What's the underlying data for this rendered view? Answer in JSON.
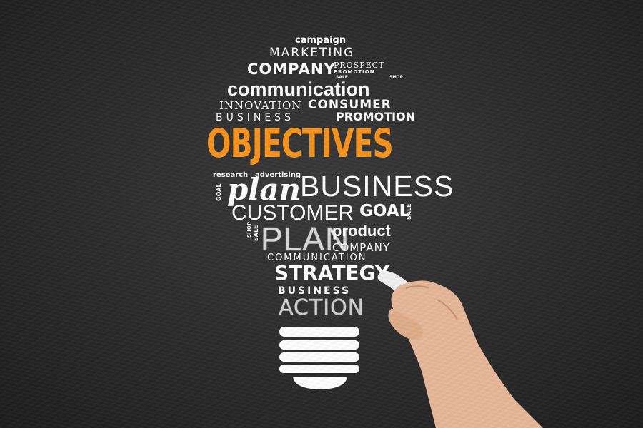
{
  "words": {
    "campaign": "campaign",
    "marketing": "MARKETING",
    "company": "COMPANY",
    "prospect": "PROSPECT",
    "promotion_small": "PROMOTION",
    "sale": "SALE",
    "shop": "SHOP",
    "communication": "communication",
    "innovation": "INNOVATION",
    "consumer": "CONSUMER",
    "business_spaced": "BUSINESS",
    "promotion": "PROMOTION",
    "objectives": "OBJECTIVES",
    "research": "research",
    "advertising": "advertising",
    "goal_small": "GOAL",
    "plan_script": "plan",
    "business_large": "BUSINESS",
    "customer": "CUSTOMER",
    "goal": "GOAL",
    "sale_right": "SALE",
    "shop_left": "SHOP",
    "sale_left": "SALE",
    "plan_caps": "PLAN",
    "product": "product",
    "company_small": "COMPANY",
    "communication_caps": "COMMUNICATION",
    "strategy": "STRATEGY",
    "business_bottom": "BUSINESS",
    "action": "ACTION"
  },
  "colors": {
    "board": "#2e2e2e",
    "text": "#ffffff",
    "accent": "#f7941d",
    "skin": "#e8b99a",
    "chalk": "#f2f2f2"
  },
  "icons": {
    "bulb_base": "lightbulb-base-icon",
    "hand": "hand-holding-chalk"
  }
}
